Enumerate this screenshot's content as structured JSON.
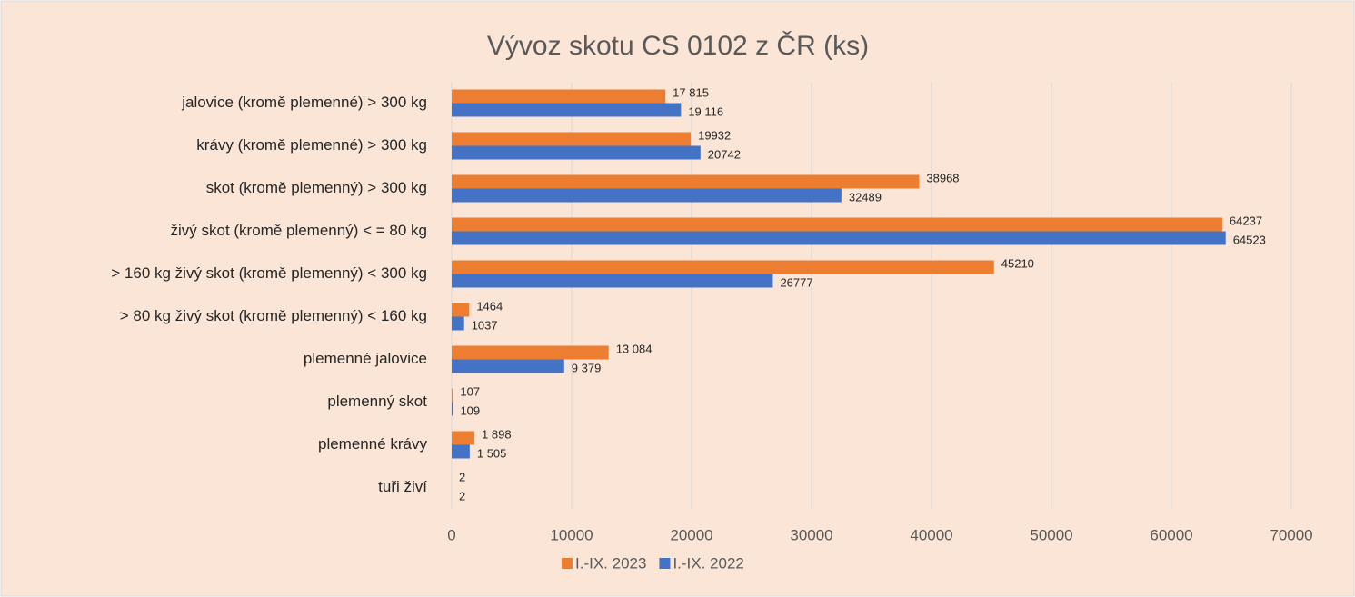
{
  "chart_data": {
    "type": "hbar",
    "title": "Vývoz skotu CS 0102 z ČR (ks)",
    "categories": [
      "jalovice (kromě plemenné) > 300 kg",
      "krávy (kromě plemenné) > 300 kg",
      "skot (kromě plemenný) > 300 kg",
      "živý skot (kromě plemenný) < = 80 kg",
      "> 160 kg živý skot (kromě plemenný) < 300 kg",
      "> 80 kg živý skot (kromě plemenný) < 160 kg",
      "plemenné jalovice",
      "plemenný skot",
      "plemenné krávy",
      "tuři živí"
    ],
    "series": [
      {
        "name": "I.-IX. 2023",
        "color": "#ed7d31",
        "values": [
          17815,
          19932,
          38968,
          64237,
          45210,
          1464,
          13084,
          107,
          1898,
          2
        ],
        "value_labels": [
          "17 815",
          "19932",
          "38968",
          "64237",
          "45210",
          "1464",
          "13 084",
          "107",
          "1 898",
          "2"
        ]
      },
      {
        "name": "I.-IX. 2022",
        "color": "#4472c4",
        "values": [
          19116,
          20742,
          32489,
          64523,
          26777,
          1037,
          9379,
          109,
          1505,
          2
        ],
        "value_labels": [
          "19 116",
          "20742",
          "32489",
          "64523",
          "26777",
          "1037",
          "9 379",
          "109",
          "1 505",
          "2"
        ]
      }
    ],
    "xlim": [
      0,
      70000
    ],
    "xticks": [
      0,
      10000,
      20000,
      30000,
      40000,
      50000,
      60000,
      70000
    ],
    "grid": true
  }
}
